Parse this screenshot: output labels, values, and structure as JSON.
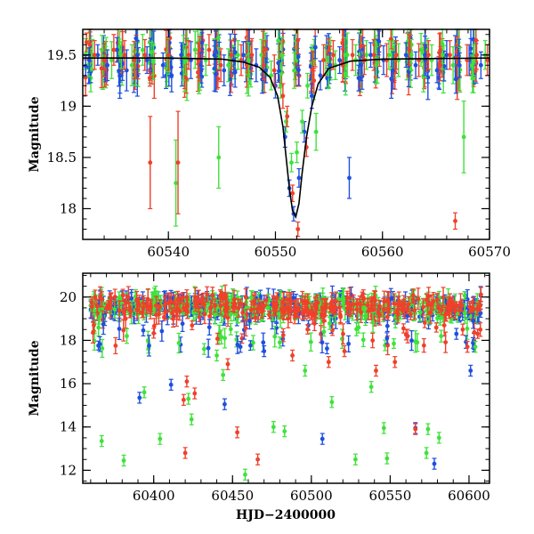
{
  "figure_title": "",
  "colors": {
    "blue": "#1f4fe0",
    "green": "#3fe23a",
    "red": "#f0402a",
    "model": "#000000"
  },
  "chart_data": [
    {
      "type": "scatter",
      "title": "",
      "xlabel": "",
      "ylabel": "Magnitude",
      "xlim": [
        60532,
        60570
      ],
      "ylim": [
        19.75,
        17.7
      ],
      "y_inverted": true,
      "xticks": [
        60540,
        60550,
        60560,
        60570
      ],
      "xtick_labels": [
        "60540",
        "60550",
        "60560",
        "60570"
      ],
      "yticks": [
        18,
        18.5,
        19,
        19.5
      ],
      "ytick_labels": [
        "18",
        "18.5",
        "19",
        "19.5"
      ],
      "legend": "none",
      "series": [
        {
          "name": "blue",
          "x": [
            60532.6,
            60533.4,
            60534.3,
            60535.2,
            60536.1,
            60537.1,
            60538.0,
            60539.5,
            60540.3,
            60541.2,
            60542.1,
            60543.0,
            60544.3,
            60545.2,
            60546.1,
            60547.0,
            60548.2,
            60549.1,
            60550.0,
            60550.9,
            60551.3,
            60551.7,
            60552.2,
            60552.7,
            60553.4,
            60554.2,
            60555.1,
            60556.0,
            60556.9,
            60558.0,
            60558.9,
            60560.1,
            60561.0,
            60562.2,
            60563.1,
            60564.0,
            60565.1,
            60566.0,
            60567.2,
            60568.1,
            60569.2
          ],
          "y": [
            19.45,
            19.5,
            19.4,
            19.55,
            19.35,
            19.5,
            19.45,
            19.4,
            19.3,
            19.5,
            19.45,
            19.4,
            19.5,
            19.35,
            19.45,
            19.5,
            19.4,
            19.35,
            19.2,
            18.7,
            18.2,
            17.95,
            18.3,
            18.75,
            19.1,
            19.3,
            19.4,
            19.45,
            18.3,
            19.4,
            19.5,
            19.45,
            19.35,
            19.5,
            19.4,
            19.45,
            19.35,
            19.5,
            19.4,
            19.45,
            19.4
          ],
          "yerr": [
            0.12,
            0.1,
            0.15,
            0.12,
            0.2,
            0.14,
            0.13,
            0.12,
            0.16,
            0.12,
            0.18,
            0.12,
            0.14,
            0.15,
            0.12,
            0.13,
            0.16,
            0.12,
            0.12,
            0.1,
            0.08,
            0.07,
            0.09,
            0.1,
            0.12,
            0.14,
            0.12,
            0.13,
            0.2,
            0.15,
            0.12,
            0.14,
            0.18,
            0.12,
            0.13,
            0.15,
            0.12,
            0.14,
            0.12,
            0.15,
            0.13
          ]
        },
        {
          "name": "green",
          "x": [
            60532.9,
            60533.8,
            60534.7,
            60535.6,
            60536.6,
            60537.6,
            60538.6,
            60539.9,
            60540.7,
            60541.6,
            60542.5,
            60543.5,
            60544.7,
            60545.6,
            60546.5,
            60547.5,
            60548.7,
            60549.6,
            60550.5,
            60551.0,
            60551.5,
            60552.0,
            60552.5,
            60553.0,
            60553.8,
            60554.7,
            60555.6,
            60556.5,
            60557.5,
            60558.5,
            60559.4,
            60560.6,
            60561.5,
            60562.7,
            60563.6,
            60564.6,
            60565.6,
            60566.6,
            60567.6,
            60568.5,
            60569.6
          ],
          "y": [
            19.5,
            19.55,
            19.45,
            19.5,
            19.4,
            19.55,
            19.45,
            19.5,
            18.25,
            19.45,
            19.55,
            19.45,
            18.5,
            19.4,
            19.5,
            19.45,
            19.5,
            19.3,
            19.2,
            18.85,
            18.45,
            18.55,
            18.85,
            19.2,
            18.75,
            19.45,
            19.4,
            19.5,
            19.45,
            19.5,
            19.4,
            19.5,
            19.45,
            19.5,
            19.55,
            19.45,
            19.5,
            19.4,
            18.7,
            19.45,
            19.5
          ],
          "yerr": [
            0.15,
            0.14,
            0.18,
            0.13,
            0.2,
            0.15,
            0.14,
            0.16,
            0.42,
            0.14,
            0.18,
            0.15,
            0.3,
            0.16,
            0.14,
            0.17,
            0.15,
            0.14,
            0.12,
            0.1,
            0.09,
            0.1,
            0.11,
            0.12,
            0.18,
            0.15,
            0.14,
            0.17,
            0.15,
            0.14,
            0.18,
            0.14,
            0.16,
            0.15,
            0.16,
            0.15,
            0.14,
            0.18,
            0.35,
            0.15,
            0.14
          ]
        },
        {
          "name": "red",
          "x": [
            60533.1,
            60534.0,
            60534.9,
            60535.9,
            60536.8,
            60537.8,
            60538.3,
            60540.0,
            60540.9,
            60541.9,
            60542.8,
            60543.8,
            60544.9,
            60545.9,
            60546.8,
            60547.8,
            60548.9,
            60549.9,
            60550.7,
            60551.1,
            60551.6,
            60552.1,
            60552.9,
            60553.6,
            60554.5,
            60555.4,
            60556.3,
            60557.2,
            60558.3,
            60559.2,
            60560.4,
            60561.3,
            60562.5,
            60563.4,
            60564.3,
            60565.4,
            60566.3,
            60566.8,
            60567.9,
            60568.8,
            60569.8
          ],
          "y": [
            19.5,
            19.45,
            19.55,
            19.5,
            19.45,
            19.5,
            18.45,
            19.5,
            18.45,
            19.5,
            19.45,
            19.55,
            19.4,
            19.5,
            19.45,
            19.5,
            19.4,
            19.35,
            19.1,
            18.9,
            18.15,
            17.8,
            18.6,
            19.25,
            19.45,
            19.5,
            19.4,
            19.5,
            19.45,
            19.5,
            19.45,
            19.5,
            19.55,
            19.45,
            19.5,
            19.4,
            19.5,
            17.88,
            19.45,
            19.5,
            19.45
          ],
          "yerr": [
            0.14,
            0.16,
            0.15,
            0.14,
            0.18,
            0.15,
            0.45,
            0.15,
            0.5,
            0.14,
            0.17,
            0.15,
            0.16,
            0.14,
            0.15,
            0.16,
            0.14,
            0.15,
            0.12,
            0.1,
            0.08,
            0.07,
            0.09,
            0.12,
            0.15,
            0.14,
            0.16,
            0.15,
            0.14,
            0.15,
            0.16,
            0.14,
            0.15,
            0.16,
            0.14,
            0.15,
            0.14,
            0.08,
            0.15,
            0.14,
            0.15
          ]
        }
      ],
      "model_curve": {
        "name": "model",
        "x": [
          60532,
          60540,
          60545,
          60547,
          60548.5,
          60549.5,
          60550.2,
          60550.7,
          60551.0,
          60551.3,
          60551.6,
          60551.9,
          60552.2,
          60552.5,
          60552.9,
          60553.4,
          60554.0,
          60555.0,
          60557,
          60560,
          60570
        ],
        "y": [
          19.47,
          19.47,
          19.46,
          19.43,
          19.38,
          19.28,
          19.1,
          18.8,
          18.5,
          18.2,
          17.98,
          17.92,
          18.05,
          18.35,
          18.7,
          19.0,
          19.22,
          19.37,
          19.44,
          19.46,
          19.47
        ]
      }
    },
    {
      "type": "scatter",
      "title": "",
      "xlabel": "HJD−2400000",
      "ylabel": "Magnitude",
      "xlim": [
        60355,
        60613
      ],
      "ylim": [
        21.1,
        11.4
      ],
      "y_inverted": true,
      "xticks": [
        60400,
        60450,
        60500,
        60550,
        60600
      ],
      "xtick_labels": [
        "60400",
        "60450",
        "60500",
        "60550",
        "60600"
      ],
      "yticks": [
        12,
        14,
        16,
        18,
        20
      ],
      "ytick_labels": [
        "12",
        "14",
        "16",
        "18",
        "20"
      ],
      "legend": "none",
      "baseline": {
        "mean": 19.55,
        "scatter": 0.55,
        "x_start": 60360,
        "x_end": 60608,
        "points_per_series": 260
      },
      "outliers": {
        "blue": {
          "x": [
            60391,
            60411,
            60445,
            60455,
            60470,
            60507,
            60548,
            60566,
            60578,
            60601,
            60592
          ],
          "y": [
            15.35,
            15.95,
            15.05,
            17.7,
            17.5,
            13.45,
            18.1,
            13.95,
            12.3,
            16.6,
            18.3
          ]
        },
        "green": {
          "x": [
            60367,
            60381,
            60394,
            60404,
            60422,
            60424,
            60444,
            60458,
            60476,
            60483,
            60496,
            60513,
            60528,
            60538,
            60546,
            60548,
            60573,
            60574,
            60581,
            60604,
            60432,
            60440,
            60480
          ],
          "y": [
            13.35,
            12.45,
            15.6,
            13.45,
            15.3,
            14.35,
            16.4,
            11.8,
            14.0,
            13.8,
            16.6,
            15.15,
            12.5,
            15.85,
            13.95,
            12.55,
            12.8,
            13.9,
            13.5,
            17.7,
            17.6,
            17.3,
            17.9
          ]
        },
        "red": {
          "x": [
            60362,
            60419,
            60420,
            60421,
            60426,
            60453,
            60466,
            60488,
            60511,
            60541,
            60553,
            60566,
            60596,
            60599,
            60447,
            60521
          ],
          "y": [
            18.7,
            15.25,
            12.8,
            16.1,
            15.55,
            13.75,
            12.5,
            17.3,
            17.0,
            16.6,
            17.0,
            13.9,
            18.5,
            17.7,
            16.9,
            17.5
          ]
        }
      }
    }
  ]
}
